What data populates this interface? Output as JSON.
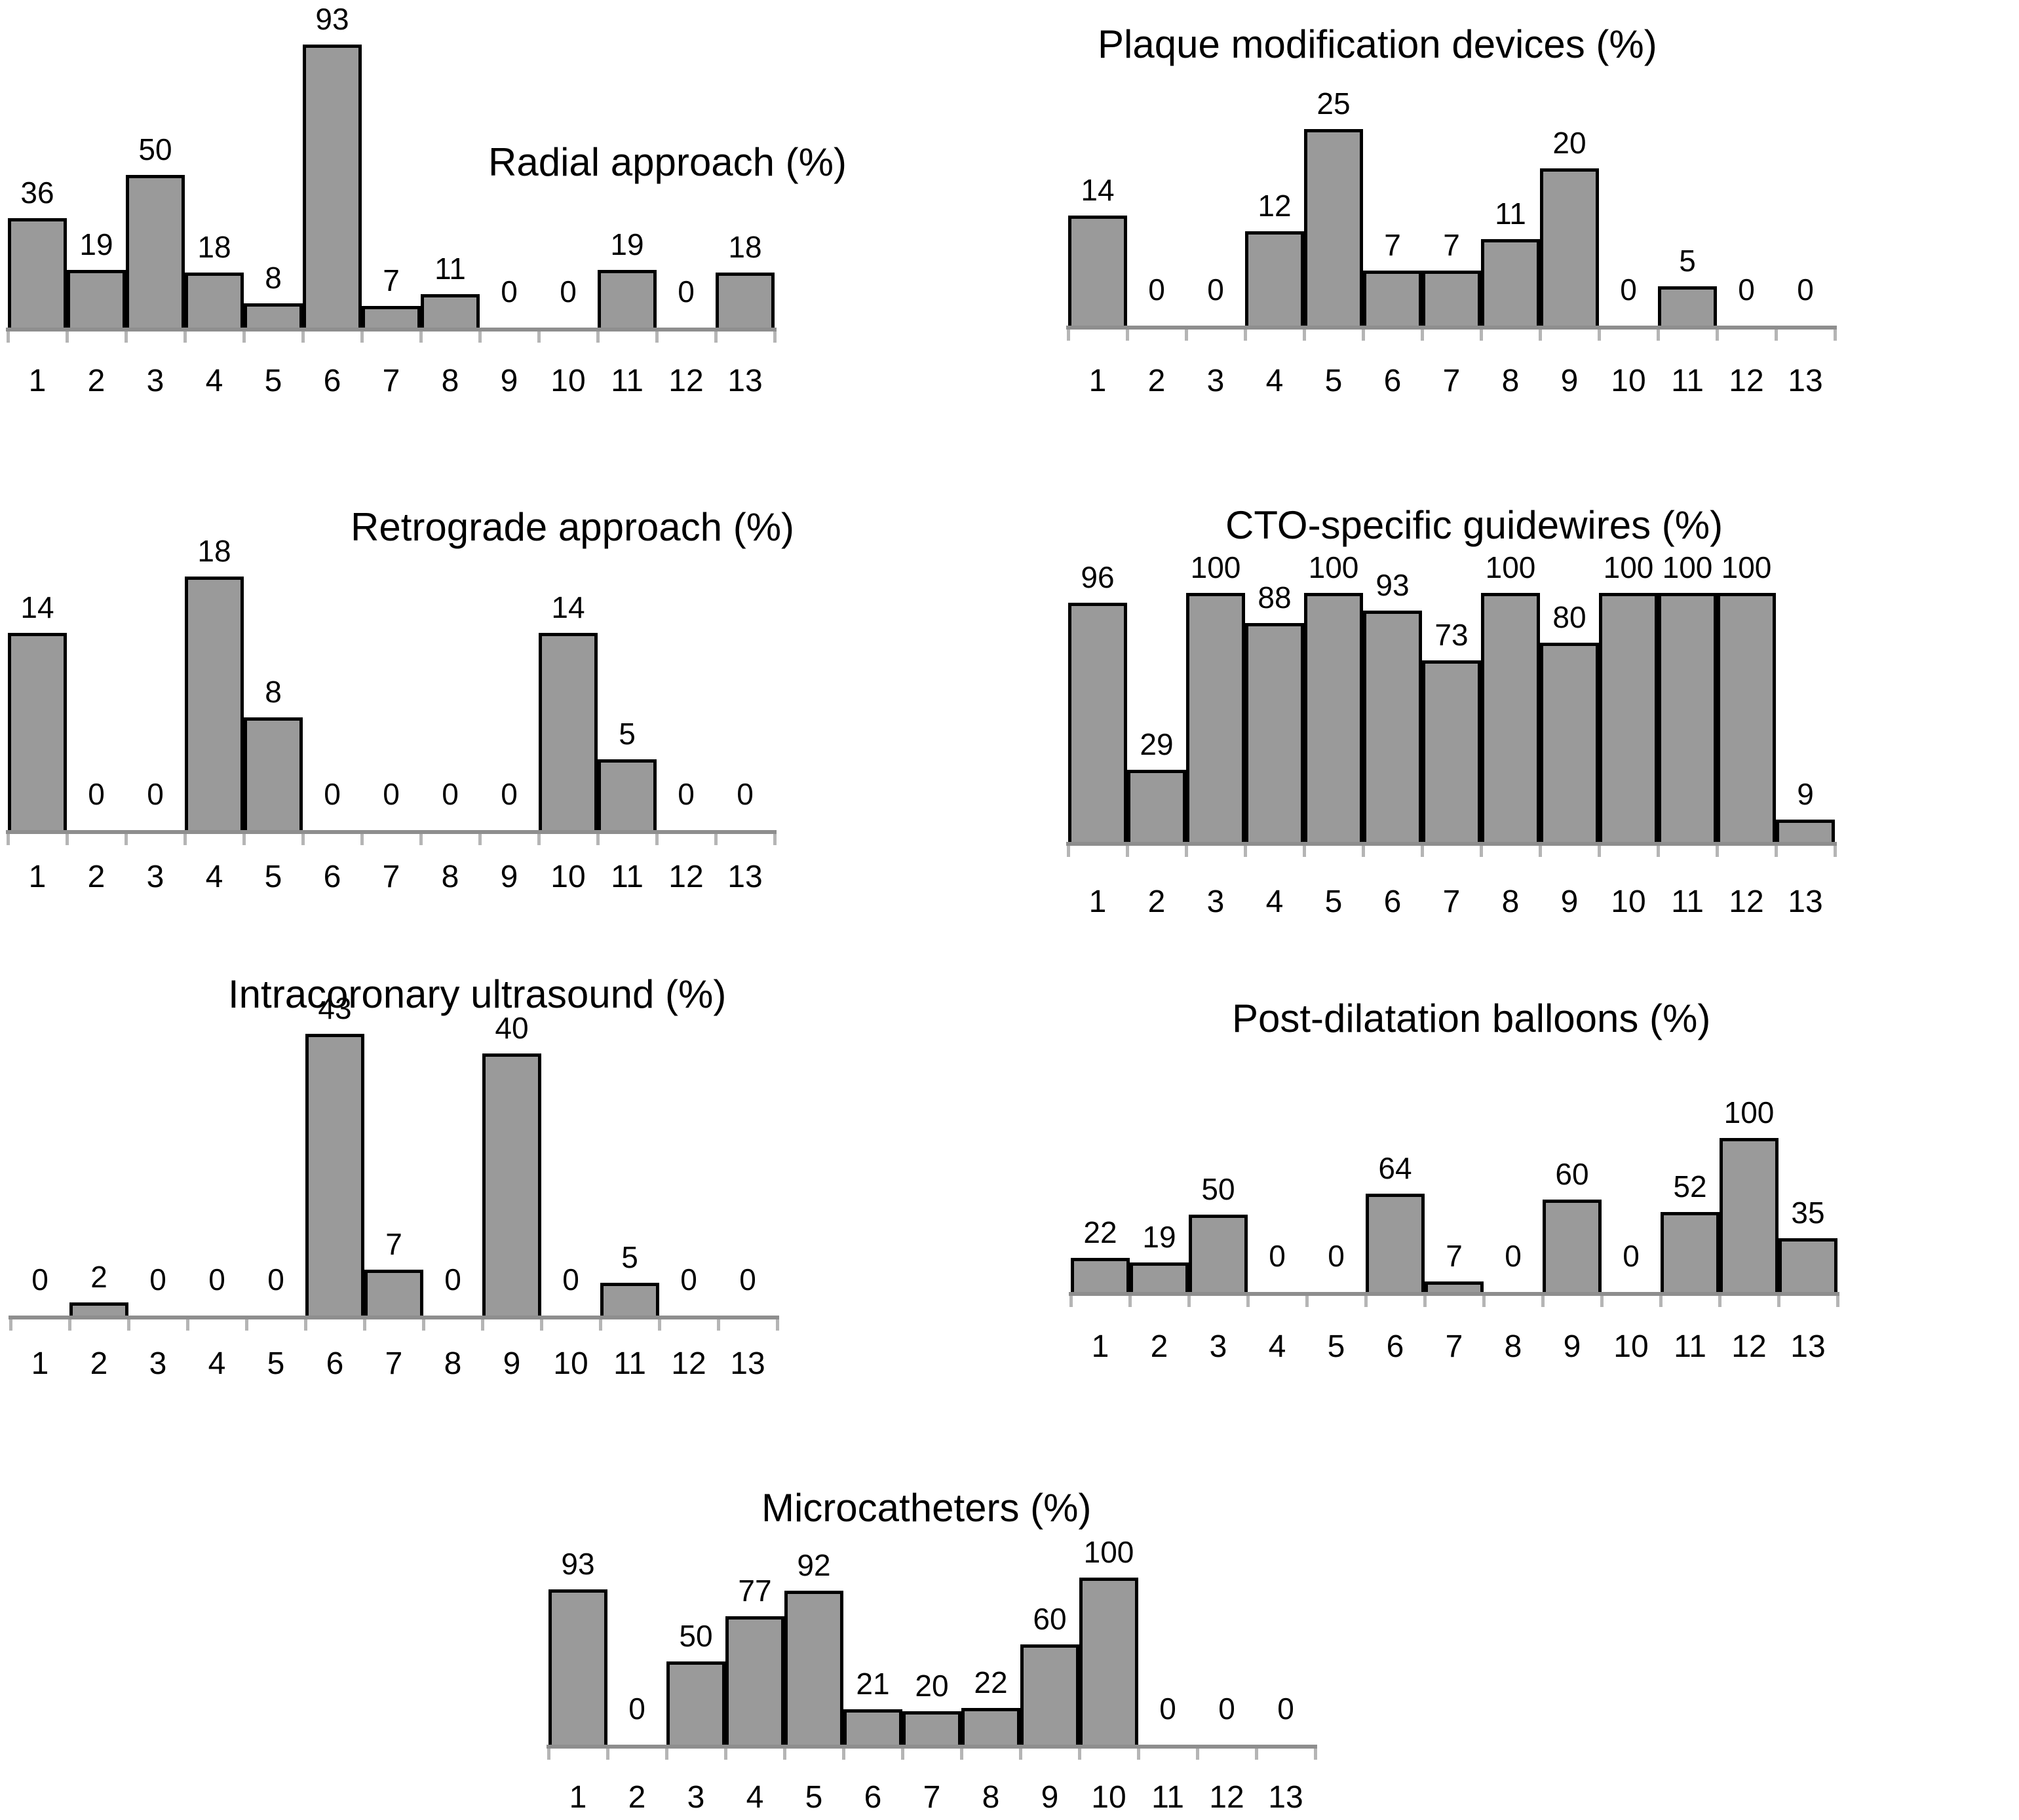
{
  "styles": {
    "background": "#ffffff",
    "bar_fill": "#9a9a9a",
    "bar_border": "#000000",
    "axis_color": "#8e8e8e",
    "tick_color": "#b5b5b5",
    "text_color": "#000000"
  },
  "chart_data": [
    {
      "type": "bar",
      "title": "Radial approach (%)",
      "categories": [
        "1",
        "2",
        "3",
        "4",
        "5",
        "6",
        "7",
        "8",
        "9",
        "10",
        "11",
        "12",
        "13"
      ],
      "values": [
        36,
        19,
        50,
        18,
        8,
        93,
        7,
        11,
        0,
        0,
        19,
        0,
        18
      ],
      "ylim": [
        0,
        100
      ],
      "grid": false,
      "value_labels": "above-bars",
      "title_position": "right-of-plot-top"
    },
    {
      "type": "bar",
      "title": "Plaque modification devices (%)",
      "categories": [
        "1",
        "2",
        "3",
        "4",
        "5",
        "6",
        "7",
        "8",
        "9",
        "10",
        "11",
        "12",
        "13"
      ],
      "values": [
        14,
        0,
        0,
        12,
        25,
        7,
        7,
        11,
        20,
        0,
        5,
        0,
        0
      ],
      "ylim": [
        0,
        100
      ],
      "grid": false,
      "value_labels": "above-bars",
      "title_position": "top-center"
    },
    {
      "type": "bar",
      "title": "Retrograde approach (%)",
      "categories": [
        "1",
        "2",
        "3",
        "4",
        "5",
        "6",
        "7",
        "8",
        "9",
        "10",
        "11",
        "12",
        "13"
      ],
      "values": [
        14,
        0,
        0,
        18,
        8,
        0,
        0,
        0,
        0,
        14,
        5,
        0,
        0
      ],
      "ylim": [
        0,
        100
      ],
      "grid": false,
      "value_labels": "above-bars",
      "title_position": "top-right-of-plot"
    },
    {
      "type": "bar",
      "title": "CTO-specific guidewires (%)",
      "categories": [
        "1",
        "2",
        "3",
        "4",
        "5",
        "6",
        "7",
        "8",
        "9",
        "10",
        "11",
        "12",
        "13"
      ],
      "values": [
        96,
        29,
        100,
        88,
        100,
        93,
        73,
        100,
        80,
        100,
        100,
        100,
        9
      ],
      "ylim": [
        0,
        100
      ],
      "grid": false,
      "value_labels": "above-bars",
      "title_position": "top-center"
    },
    {
      "type": "bar",
      "title": "Intracoronary ultrasound (%)",
      "categories": [
        "1",
        "2",
        "3",
        "4",
        "5",
        "6",
        "7",
        "8",
        "9",
        "10",
        "11",
        "12",
        "13"
      ],
      "values": [
        0,
        2,
        0,
        0,
        0,
        43,
        7,
        0,
        40,
        0,
        5,
        0,
        0
      ],
      "ylim": [
        0,
        100
      ],
      "grid": false,
      "value_labels": "above-bars",
      "title_position": "top-center"
    },
    {
      "type": "bar",
      "title": "Post-dilatation balloons (%)",
      "categories": [
        "1",
        "2",
        "3",
        "4",
        "5",
        "6",
        "7",
        "8",
        "9",
        "10",
        "11",
        "12",
        "13"
      ],
      "values": [
        22,
        19,
        50,
        0,
        0,
        64,
        7,
        0,
        60,
        0,
        52,
        100,
        35
      ],
      "ylim": [
        0,
        100
      ],
      "grid": false,
      "value_labels": "above-bars",
      "title_position": "top-center"
    },
    {
      "type": "bar",
      "title": "Microcatheters (%)",
      "categories": [
        "1",
        "2",
        "3",
        "4",
        "5",
        "6",
        "7",
        "8",
        "9",
        "10",
        "11",
        "12",
        "13"
      ],
      "values": [
        93,
        0,
        50,
        77,
        92,
        21,
        20,
        22,
        60,
        100,
        0,
        0,
        0
      ],
      "ylim": [
        0,
        100
      ],
      "grid": false,
      "value_labels": "above-bars",
      "title_position": "top-center"
    }
  ]
}
